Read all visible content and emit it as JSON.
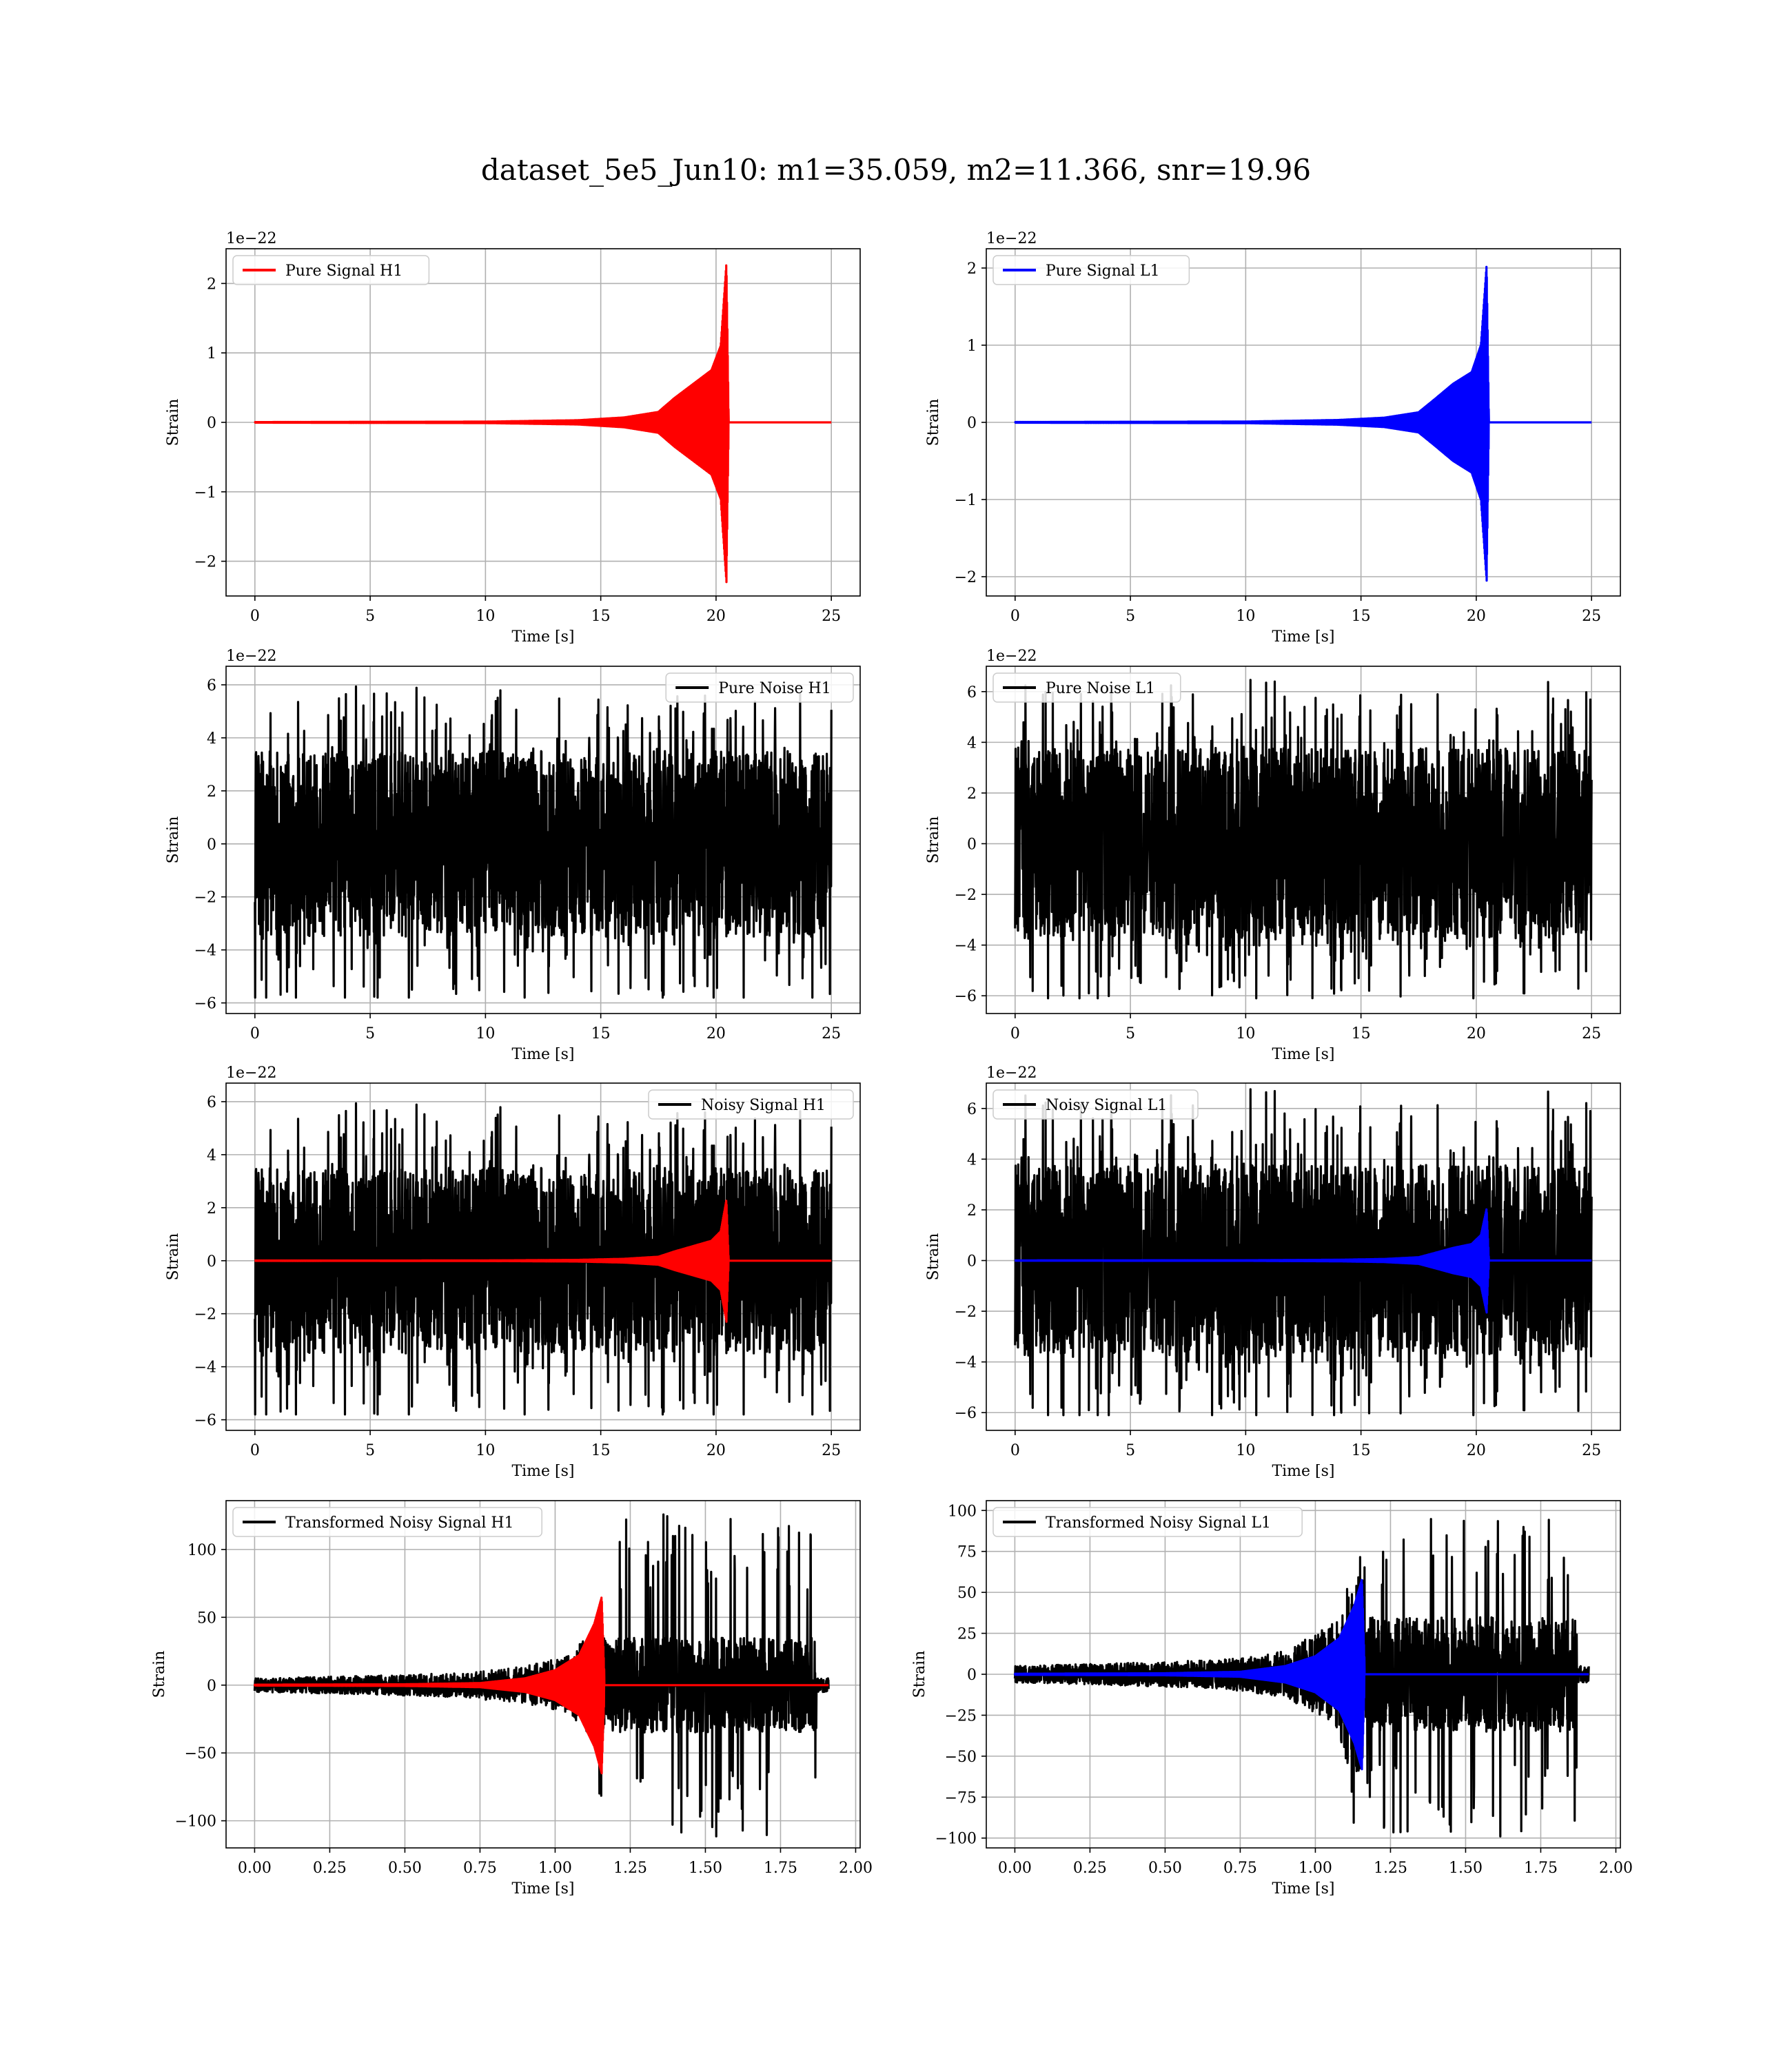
{
  "figure": {
    "title": "dataset_5e5_Jun10: m1=35.059, m2=11.366, snr=19.96"
  },
  "chart_data": [
    {
      "type": "line",
      "legend": "Pure Signal H1",
      "legend_loc": "upper left",
      "xlabel": "Time [s]",
      "ylabel": "Strain",
      "offset_text": "1e−22",
      "xlim": [
        -1.25,
        26.25
      ],
      "ylim": [
        -2.5,
        2.5
      ],
      "xticks": [
        0,
        5,
        10,
        15,
        20,
        25
      ],
      "xtick_labels": [
        "0",
        "5",
        "10",
        "15",
        "20",
        "25"
      ],
      "yticks": [
        -2,
        -1,
        0,
        1,
        2
      ],
      "ytick_labels": [
        "−2",
        "−1",
        "0",
        "1",
        "2"
      ],
      "grid": true,
      "series": [
        {
          "kind": "chirp",
          "color": "#ff0000",
          "t_merge": 20.5,
          "t_end": 25,
          "peak": 2.3,
          "envelope": [
            [
              0,
              0.004
            ],
            [
              10,
              0.01
            ],
            [
              14,
              0.03
            ],
            [
              16,
              0.07
            ],
            [
              17.5,
              0.15
            ],
            [
              18.2,
              0.35
            ],
            [
              19,
              0.55
            ],
            [
              19.8,
              0.75
            ],
            [
              20.2,
              1.1
            ],
            [
              20.45,
              2.3
            ],
            [
              20.55,
              0.0
            ]
          ]
        }
      ]
    },
    {
      "type": "line",
      "legend": "Pure Signal L1",
      "legend_loc": "upper left",
      "xlabel": "Time [s]",
      "ylabel": "Strain",
      "offset_text": "1e−22",
      "xlim": [
        -1.25,
        26.25
      ],
      "ylim": [
        -2.25,
        2.25
      ],
      "xticks": [
        0,
        5,
        10,
        15,
        20,
        25
      ],
      "xtick_labels": [
        "0",
        "5",
        "10",
        "15",
        "20",
        "25"
      ],
      "yticks": [
        -2,
        -1,
        0,
        1,
        2
      ],
      "ytick_labels": [
        "−2",
        "−1",
        "0",
        "1",
        "2"
      ],
      "grid": true,
      "series": [
        {
          "kind": "chirp",
          "color": "#0000ff",
          "t_merge": 20.5,
          "t_end": 25,
          "peak": 2.05,
          "envelope": [
            [
              0,
              0.004
            ],
            [
              10,
              0.01
            ],
            [
              14,
              0.03
            ],
            [
              16,
              0.06
            ],
            [
              17.5,
              0.13
            ],
            [
              18.2,
              0.3
            ],
            [
              19,
              0.5
            ],
            [
              19.8,
              0.65
            ],
            [
              20.2,
              1.0
            ],
            [
              20.45,
              2.05
            ],
            [
              20.55,
              0.0
            ]
          ]
        }
      ]
    },
    {
      "type": "line",
      "legend": "Pure Noise H1",
      "legend_loc": "upper right",
      "xlabel": "Time [s]",
      "ylabel": "Strain",
      "offset_text": "1e−22",
      "xlim": [
        -1.25,
        26.25
      ],
      "ylim": [
        -6.4,
        6.7
      ],
      "xticks": [
        0,
        5,
        10,
        15,
        20,
        25
      ],
      "xtick_labels": [
        "0",
        "5",
        "10",
        "15",
        "20",
        "25"
      ],
      "yticks": [
        -6,
        -4,
        -2,
        0,
        2,
        4,
        6
      ],
      "ytick_labels": [
        "−6",
        "−4",
        "−2",
        "0",
        "2",
        "4",
        "6"
      ],
      "grid": true,
      "series": [
        {
          "kind": "noise",
          "color": "#000000",
          "t_end": 25,
          "core": 3.5,
          "max": 6.2,
          "min": -5.8,
          "seed": 11
        }
      ]
    },
    {
      "type": "line",
      "legend": "Pure Noise L1",
      "legend_loc": "upper left",
      "xlabel": "Time [s]",
      "ylabel": "Strain",
      "offset_text": "1e−22",
      "xlim": [
        -1.25,
        26.25
      ],
      "ylim": [
        -6.7,
        7.0
      ],
      "xticks": [
        0,
        5,
        10,
        15,
        20,
        25
      ],
      "xtick_labels": [
        "0",
        "5",
        "10",
        "15",
        "20",
        "25"
      ],
      "yticks": [
        -6,
        -4,
        -2,
        0,
        2,
        4,
        6
      ],
      "ytick_labels": [
        "−6",
        "−4",
        "−2",
        "0",
        "2",
        "4",
        "6"
      ],
      "grid": true,
      "series": [
        {
          "kind": "noise",
          "color": "#000000",
          "t_end": 25,
          "core": 3.8,
          "max": 6.5,
          "min": -6.1,
          "seed": 23
        }
      ]
    },
    {
      "type": "line",
      "legend": "Noisy Signal H1",
      "legend_loc": "upper right",
      "xlabel": "Time [s]",
      "ylabel": "Strain",
      "offset_text": "1e−22",
      "xlim": [
        -1.25,
        26.25
      ],
      "ylim": [
        -6.4,
        6.7
      ],
      "xticks": [
        0,
        5,
        10,
        15,
        20,
        25
      ],
      "xtick_labels": [
        "0",
        "5",
        "10",
        "15",
        "20",
        "25"
      ],
      "yticks": [
        -6,
        -4,
        -2,
        0,
        2,
        4,
        6
      ],
      "ytick_labels": [
        "−6",
        "−4",
        "−2",
        "0",
        "2",
        "4",
        "6"
      ],
      "grid": true,
      "series": [
        {
          "kind": "noise",
          "color": "#000000",
          "t_end": 25,
          "core": 3.5,
          "max": 6.2,
          "min": -5.8,
          "seed": 11
        },
        {
          "kind": "chirp",
          "color": "#ff0000",
          "t_merge": 20.5,
          "t_end": 25,
          "peak": 2.3,
          "envelope": [
            [
              0,
              0.004
            ],
            [
              10,
              0.01
            ],
            [
              14,
              0.03
            ],
            [
              16,
              0.07
            ],
            [
              17.5,
              0.15
            ],
            [
              18.2,
              0.35
            ],
            [
              19,
              0.55
            ],
            [
              19.8,
              0.75
            ],
            [
              20.2,
              1.1
            ],
            [
              20.45,
              2.3
            ],
            [
              20.55,
              0.0
            ]
          ]
        }
      ]
    },
    {
      "type": "line",
      "legend": "Noisy Signal L1",
      "legend_loc": "upper left",
      "xlabel": "Time [s]",
      "ylabel": "Strain",
      "offset_text": "1e−22",
      "xlim": [
        -1.25,
        26.25
      ],
      "ylim": [
        -6.7,
        7.0
      ],
      "xticks": [
        0,
        5,
        10,
        15,
        20,
        25
      ],
      "xtick_labels": [
        "0",
        "5",
        "10",
        "15",
        "20",
        "25"
      ],
      "yticks": [
        -6,
        -4,
        -2,
        0,
        2,
        4,
        6
      ],
      "ytick_labels": [
        "−6",
        "−4",
        "−2",
        "0",
        "2",
        "4",
        "6"
      ],
      "grid": true,
      "series": [
        {
          "kind": "noise",
          "color": "#000000",
          "t_end": 25,
          "core": 3.8,
          "max": 6.8,
          "min": -6.1,
          "seed": 23
        },
        {
          "kind": "chirp",
          "color": "#0000ff",
          "t_merge": 20.5,
          "t_end": 25,
          "peak": 2.05,
          "envelope": [
            [
              0,
              0.004
            ],
            [
              10,
              0.01
            ],
            [
              14,
              0.03
            ],
            [
              16,
              0.06
            ],
            [
              17.5,
              0.13
            ],
            [
              18.2,
              0.3
            ],
            [
              19,
              0.5
            ],
            [
              19.8,
              0.65
            ],
            [
              20.2,
              1.0
            ],
            [
              20.45,
              2.05
            ],
            [
              20.55,
              0.0
            ]
          ]
        }
      ]
    },
    {
      "type": "line",
      "legend": "Transformed Noisy Signal H1",
      "legend_loc": "upper left",
      "xlabel": "Time [s]",
      "ylabel": "Strain",
      "offset_text": "",
      "xlim": [
        -0.095,
        2.015
      ],
      "ylim": [
        -120,
        136
      ],
      "xticks": [
        0.0,
        0.25,
        0.5,
        0.75,
        1.0,
        1.25,
        1.5,
        1.75,
        2.0
      ],
      "xtick_labels": [
        "0.00",
        "0.25",
        "0.50",
        "0.75",
        "1.00",
        "1.25",
        "1.50",
        "1.75",
        "2.00"
      ],
      "yticks": [
        -100,
        -50,
        0,
        50,
        100
      ],
      "ytick_labels": [
        "−100",
        "−50",
        "0",
        "50",
        "100"
      ],
      "grid": true,
      "series": [
        {
          "kind": "whitened",
          "color": "#000000",
          "t_end": 1.91,
          "t_merge": 1.16,
          "t_cut": 1.87,
          "pre_envelope": [
            [
              0,
              5
            ],
            [
              0.4,
              7
            ],
            [
              0.7,
              9
            ],
            [
              0.9,
              14
            ],
            [
              1.05,
              22
            ],
            [
              1.12,
              40
            ]
          ],
          "post_core": 35,
          "max": 127,
          "min": -112,
          "seed": 37
        },
        {
          "kind": "chirp",
          "color": "#ff0000",
          "t_merge": 1.16,
          "t_end": 1.91,
          "peak": 65,
          "envelope": [
            [
              0,
              0.3
            ],
            [
              0.5,
              0.6
            ],
            [
              0.75,
              1.5
            ],
            [
              0.9,
              5
            ],
            [
              1.0,
              11
            ],
            [
              1.08,
              22
            ],
            [
              1.13,
              45
            ],
            [
              1.155,
              65
            ],
            [
              1.165,
              0
            ]
          ]
        }
      ]
    },
    {
      "type": "line",
      "legend": "Transformed Noisy Signal L1",
      "legend_loc": "upper left",
      "xlabel": "Time [s]",
      "ylabel": "Strain",
      "offset_text": "",
      "xlim": [
        -0.095,
        2.015
      ],
      "ylim": [
        -106,
        106
      ],
      "xticks": [
        0.0,
        0.25,
        0.5,
        0.75,
        1.0,
        1.25,
        1.5,
        1.75,
        2.0
      ],
      "xtick_labels": [
        "0.00",
        "0.25",
        "0.50",
        "0.75",
        "1.00",
        "1.25",
        "1.50",
        "1.75",
        "2.00"
      ],
      "yticks": [
        -100,
        -75,
        -50,
        -25,
        0,
        25,
        50,
        75,
        100
      ],
      "ytick_labels": [
        "−100",
        "−75",
        "−50",
        "−25",
        "0",
        "25",
        "50",
        "75",
        "100"
      ],
      "grid": true,
      "series": [
        {
          "kind": "whitened",
          "color": "#000000",
          "t_end": 1.91,
          "t_merge": 1.16,
          "t_cut": 1.87,
          "pre_envelope": [
            [
              0,
              5
            ],
            [
              0.4,
              7
            ],
            [
              0.7,
              9
            ],
            [
              0.9,
              14
            ],
            [
              1.05,
              30
            ],
            [
              1.12,
              60
            ]
          ],
          "post_core": 35,
          "max": 97,
          "min": -100,
          "seed": 53
        },
        {
          "kind": "chirp",
          "color": "#0000ff",
          "t_merge": 1.16,
          "t_end": 1.91,
          "peak": 58,
          "envelope": [
            [
              0,
              0.3
            ],
            [
              0.5,
              0.6
            ],
            [
              0.75,
              1.5
            ],
            [
              0.9,
              5
            ],
            [
              1.0,
              11
            ],
            [
              1.08,
              22
            ],
            [
              1.13,
              42
            ],
            [
              1.155,
              58
            ],
            [
              1.165,
              0
            ]
          ]
        }
      ]
    }
  ]
}
